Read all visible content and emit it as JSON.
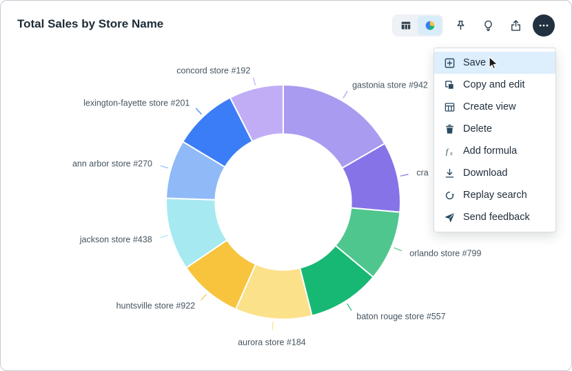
{
  "header": {
    "title": "Total Sales by Store Name"
  },
  "toolbar": {
    "view_toggle": {
      "options": [
        "table",
        "chart"
      ],
      "selected": "chart"
    },
    "buttons": [
      "pin",
      "insights",
      "share",
      "more"
    ]
  },
  "menu": {
    "items": [
      {
        "label": "Save",
        "icon": "save-icon",
        "highlighted": true
      },
      {
        "label": "Copy and edit",
        "icon": "copy-icon",
        "highlighted": false
      },
      {
        "label": "Create view",
        "icon": "create-view-icon",
        "highlighted": false
      },
      {
        "label": "Delete",
        "icon": "trash-icon",
        "highlighted": false
      },
      {
        "label": "Add formula",
        "icon": "formula-icon",
        "highlighted": false
      },
      {
        "label": "Download",
        "icon": "download-icon",
        "highlighted": false
      },
      {
        "label": "Replay search",
        "icon": "replay-icon",
        "highlighted": false
      },
      {
        "label": "Send feedback",
        "icon": "send-feedback-icon",
        "highlighted": false
      }
    ]
  },
  "chart_data": {
    "type": "pie",
    "subtype": "donut",
    "title": "Total Sales by Store Name",
    "legend": "none",
    "donut_hole_ratio": 0.58,
    "start_angle_deg": 0,
    "direction": "clockwise",
    "labels": [
      "gastonia store #942",
      "cra",
      "orlando store #799",
      "baton rouge store #557",
      "aurora store #184",
      "huntsville store #922",
      "jackson store #438",
      "ann arbor store #270",
      "lexington-fayette store #201",
      "concord store #192"
    ],
    "values_pct": [
      16.7,
      9.7,
      9.7,
      10.0,
      10.6,
      8.9,
      10.0,
      8.1,
      8.9,
      7.5
    ],
    "colors": [
      "#a89bf0",
      "#8673e8",
      "#4fc68e",
      "#17b873",
      "#fbe18a",
      "#f8c43d",
      "#a7e9f0",
      "#90baf7",
      "#3b7df6",
      "#c1adf6"
    ],
    "label_color": "#46545f"
  },
  "theme": {
    "accent": "#3b7cf5",
    "menu_highlight": "#ddeefc",
    "more_button_bg": "#22313f",
    "selected_toggle_bg": "#d9ecfa"
  }
}
